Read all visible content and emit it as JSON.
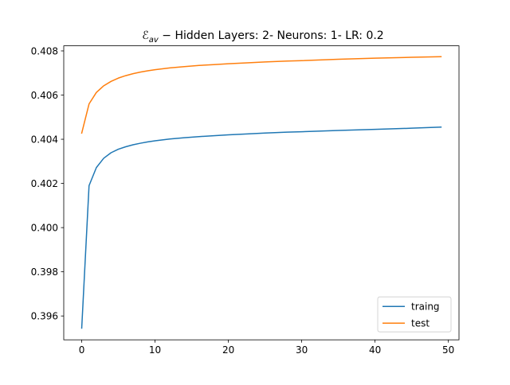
{
  "chart_data": {
    "type": "line",
    "title": {
      "symbol": "ℰ",
      "subscript": "av",
      "rest": " − Hidden Layers: 2- Neurons: 1- LR: 0.2"
    },
    "xlabel": "",
    "ylabel": "",
    "xlim": [
      -2.45,
      51.45
    ],
    "ylim": [
      0.39492,
      0.40823
    ],
    "xticks": [
      0,
      10,
      20,
      30,
      40,
      50
    ],
    "yticks": [
      0.396,
      0.398,
      0.4,
      0.402,
      0.404,
      0.406,
      0.408
    ],
    "ytick_labels": [
      "0.396",
      "0.398",
      "0.400",
      "0.402",
      "0.404",
      "0.406",
      "0.408"
    ],
    "grid": false,
    "legend": "lower-right",
    "series": [
      {
        "name": "traing",
        "color": "#1f77b4",
        "x": [
          0,
          1,
          2,
          3,
          4,
          5,
          6,
          7,
          8,
          9,
          10,
          12,
          14,
          16,
          18,
          20,
          22,
          25,
          28,
          30,
          35,
          40,
          45,
          49
        ],
        "y": [
          0.39545,
          0.4019,
          0.40272,
          0.40314,
          0.40339,
          0.40355,
          0.40366,
          0.40375,
          0.40382,
          0.40388,
          0.40393,
          0.40401,
          0.40407,
          0.40412,
          0.40416,
          0.4042,
          0.40423,
          0.40428,
          0.40432,
          0.40434,
          0.4044,
          0.40445,
          0.4045,
          0.40455
        ]
      },
      {
        "name": "test",
        "color": "#ff7f0e",
        "x": [
          0,
          1,
          2,
          3,
          4,
          5,
          6,
          7,
          8,
          9,
          10,
          12,
          14,
          16,
          18,
          20,
          22,
          25,
          28,
          30,
          35,
          40,
          45,
          49
        ],
        "y": [
          0.40428,
          0.4056,
          0.40612,
          0.40642,
          0.40662,
          0.40677,
          0.40688,
          0.40697,
          0.40704,
          0.4071,
          0.40715,
          0.40723,
          0.40729,
          0.40734,
          0.40738,
          0.40742,
          0.40745,
          0.4075,
          0.40754,
          0.40756,
          0.40762,
          0.40767,
          0.40771,
          0.40774
        ]
      }
    ]
  }
}
